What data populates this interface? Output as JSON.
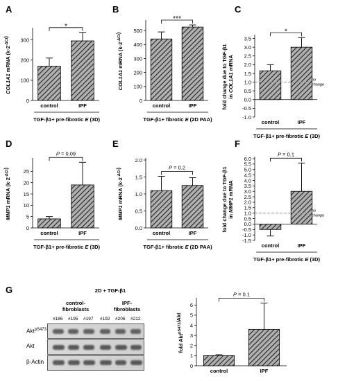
{
  "panels": [
    {
      "letter": "A",
      "ylabel_html": "COL1A1 mRNA (k·2<sup>-ΔCt</sup>)",
      "xlabel": "TGF-β1+ pre-fibrotic E (3D)",
      "sig": "*"
    },
    {
      "letter": "B",
      "ylabel_html": "COL1A1 mRNA (k·2<sup>-ΔCt</sup>)",
      "xlabel": "TGF-β1+ fibrotic E (2D PAA)",
      "sig": "***"
    },
    {
      "letter": "C",
      "ylabel_line1": "fold change due to TGF-β1",
      "ylabel_line2": "in COL1A1 mRNA",
      "xlabel": "TGF-β1+ pre-fibrotic E (3D)",
      "sig": "*",
      "dash_label": "no change"
    },
    {
      "letter": "D",
      "ylabel_html": "MMP1 mRNA (k·2<sup>-ΔCt</sup>)",
      "xlabel": "TGF-β1+ pre-fibrotic E (3D)",
      "sig": "P = 0.09"
    },
    {
      "letter": "E",
      "ylabel_html": "MMP1 mRNA (k·2<sup>-ΔCt</sup>)",
      "xlabel": "TGF-β1+ fibrotic E (2D PAA)",
      "sig": "P = 0.2"
    },
    {
      "letter": "F",
      "ylabel_line1": "fold change due to TGF-β1",
      "ylabel_line2": "in MMP1 mRNA",
      "xlabel": "TGF-β1+ pre-fibrotic E (3D)",
      "sig": "P = 0.1",
      "dash_label": "no change"
    },
    {
      "letter": "G",
      "ylabel_html": "fold Akt<sup>pS473</sup>/Akt",
      "xlabel": "",
      "sig": "P = 0.1"
    }
  ],
  "blot": {
    "title": "2D + TGF-β1",
    "group1": "control-\nfibroblasts",
    "group2": "IPF-\nfibroblasts",
    "lanes": [
      "#186",
      "#195",
      "#197",
      "#192",
      "#206",
      "#212"
    ],
    "rows": [
      "Akt",
      "Akt",
      "β-Actin"
    ],
    "row_sup": [
      "pS473",
      "",
      ""
    ]
  },
  "chart_data": [
    {
      "type": "bar",
      "panel": "A",
      "categories": [
        "control",
        "IPF"
      ],
      "values": [
        170,
        295
      ],
      "errors": [
        40,
        42
      ],
      "ylim": [
        0,
        350
      ],
      "yticks": [
        0,
        100,
        200,
        300
      ]
    },
    {
      "type": "bar",
      "panel": "B",
      "categories": [
        "control",
        "IPF"
      ],
      "values": [
        440,
        525
      ],
      "errors": [
        50,
        15
      ],
      "ylim": [
        0,
        560
      ],
      "yticks": [
        0,
        100,
        200,
        300,
        400,
        500
      ]
    },
    {
      "type": "bar",
      "panel": "C",
      "categories": [
        "control",
        "IPF"
      ],
      "values": [
        1.65,
        3.0
      ],
      "errors": [
        0.35,
        0.55
      ],
      "ylim": [
        -1.0,
        3.6
      ],
      "yticks": [
        -1.0,
        -0.5,
        0.0,
        0.5,
        1.0,
        1.5,
        2.0,
        2.5,
        3.0,
        3.5
      ],
      "reference_line": 1.0
    },
    {
      "type": "bar",
      "panel": "D",
      "categories": [
        "control",
        "IPF"
      ],
      "values": [
        4,
        19
      ],
      "errors": [
        1,
        10
      ],
      "ylim": [
        0,
        30
      ],
      "yticks": [
        0,
        5,
        10,
        15,
        20,
        25
      ]
    },
    {
      "type": "bar",
      "panel": "E",
      "categories": [
        "control",
        "IPF"
      ],
      "values": [
        1.1,
        1.25
      ],
      "errors": [
        0.42,
        0.23
      ],
      "ylim": [
        0,
        2.0
      ],
      "yticks": [
        0.0,
        0.5,
        1.0,
        1.5,
        2.0
      ]
    },
    {
      "type": "bar",
      "panel": "F",
      "categories": [
        "control",
        "IPF"
      ],
      "values": [
        -0.5,
        3.0
      ],
      "errors": [
        0.6,
        2.6
      ],
      "ylim": [
        -1.5,
        6.0
      ],
      "yticks": [
        -1.5,
        -1.0,
        -0.5,
        0.0,
        0.5,
        1.0,
        1.5,
        2.0,
        2.5,
        3.0,
        3.5,
        4.0,
        4.5,
        5.0,
        5.5,
        6.0
      ],
      "reference_line": 1.0
    },
    {
      "type": "bar",
      "panel": "G",
      "categories": [
        "control",
        "IPF"
      ],
      "values": [
        1.0,
        3.6
      ],
      "errors": [
        0.1,
        2.6
      ],
      "ylim": [
        0,
        6.5
      ],
      "yticks": [
        0,
        1,
        2,
        3,
        4,
        5,
        6
      ]
    }
  ]
}
